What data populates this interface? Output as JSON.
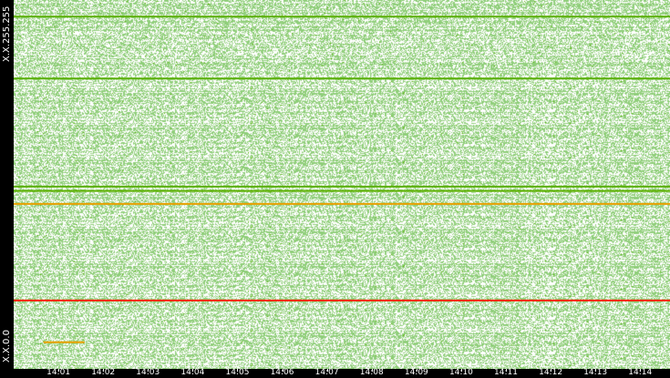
{
  "chart_data": {
    "type": "heatmap",
    "title": "",
    "ylabel_top": "X.X.255.255",
    "ylabel_bottom": "X.X.0.0",
    "ylim": [
      "X.X.0.0",
      "X.X.255.255"
    ],
    "x_ticks": [
      "14:01",
      "14:02",
      "14:03",
      "14:04",
      "14:05",
      "14:06",
      "14:07",
      "14:08",
      "14:09",
      "14:10",
      "14:11",
      "14:12",
      "14:13",
      "14:14"
    ],
    "xlim": [
      "14:00:00",
      "14:14:40"
    ],
    "background_density": 0.55,
    "colors": {
      "low": "#8fce7a",
      "medium": "#5bb000",
      "high": "#e8a000",
      "max": "#ff2000",
      "empty": "#ffffff",
      "axis": "#000000"
    },
    "highlighted_rows": [
      {
        "address": "X.X.244.x",
        "level": "medium",
        "start": "14:00:00",
        "end": "14:14:40"
      },
      {
        "address": "X.X.201.x",
        "level": "medium",
        "start": "14:00:00",
        "end": "14:14:40"
      },
      {
        "address": "X.X.126.x",
        "level": "medium",
        "start": "14:00:00",
        "end": "14:14:40"
      },
      {
        "address": "X.X.123.x",
        "level": "medium",
        "start": "14:00:00",
        "end": "14:14:40"
      },
      {
        "address": "X.X.114.x",
        "level": "high",
        "start": "14:00:00",
        "end": "14:14:40"
      },
      {
        "address": "X.X.47.x",
        "level": "max",
        "start": "14:00:00",
        "end": "14:14:40"
      },
      {
        "address": "X.X.18.x",
        "level": "high",
        "start": "14:00:40",
        "end": "14:01:35"
      }
    ]
  }
}
